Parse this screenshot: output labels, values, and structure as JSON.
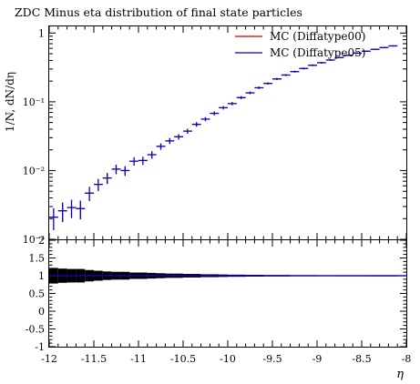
{
  "chart_data": [
    {
      "type": "scatter",
      "title": "ZDC Minus eta distribution of final state particles",
      "ylabel": "1/N, dN/dη",
      "yscale": "log",
      "xlim": [
        -12,
        -8
      ],
      "ylim": [
        0.001,
        1.25
      ],
      "yticks": [
        {
          "v": 1,
          "label": "1"
        },
        {
          "v": 0.1,
          "label": "10⁻¹"
        },
        {
          "v": 0.01,
          "label": "10⁻²"
        },
        {
          "v": 0.001,
          "label": "10⁻³"
        }
      ],
      "legend_position": "top-right",
      "series": [
        {
          "name": "MC (Diffatype00)",
          "color": "#cc0000",
          "x": [
            -11.95,
            -11.85,
            -11.75,
            -11.65,
            -11.55,
            -11.45,
            -11.35,
            -11.25,
            -11.15,
            -11.05,
            -10.95,
            -10.85,
            -10.75,
            -10.65,
            -10.55,
            -10.45,
            -10.35,
            -10.25,
            -10.15,
            -10.05,
            -9.95,
            -9.85,
            -9.75,
            -9.65,
            -9.55,
            -9.45,
            -9.35,
            -9.25,
            -9.15,
            -9.05,
            -8.95,
            -8.85,
            -8.75,
            -8.65,
            -8.55,
            -8.45,
            -8.35,
            -8.25,
            -8.15
          ],
          "y": [
            0.0021,
            0.0026,
            0.0029,
            0.0028,
            0.0047,
            0.0063,
            0.0078,
            0.0105,
            0.01,
            0.0137,
            0.014,
            0.017,
            0.0225,
            0.027,
            0.031,
            0.0375,
            0.047,
            0.056,
            0.068,
            0.082,
            0.094,
            0.115,
            0.135,
            0.16,
            0.185,
            0.215,
            0.245,
            0.275,
            0.305,
            0.34,
            0.37,
            0.405,
            0.44,
            0.475,
            0.51,
            0.545,
            0.58,
            0.615,
            0.65
          ]
        },
        {
          "name": "MC (Diffatype05)",
          "color": "#0000cc",
          "x": [
            -11.95,
            -11.85,
            -11.75,
            -11.65,
            -11.55,
            -11.45,
            -11.35,
            -11.25,
            -11.15,
            -11.05,
            -10.95,
            -10.85,
            -10.75,
            -10.65,
            -10.55,
            -10.45,
            -10.35,
            -10.25,
            -10.15,
            -10.05,
            -9.95,
            -9.85,
            -9.75,
            -9.65,
            -9.55,
            -9.45,
            -9.35,
            -9.25,
            -9.15,
            -9.05,
            -8.95,
            -8.85,
            -8.75,
            -8.65,
            -8.55,
            -8.45,
            -8.35,
            -8.25,
            -8.15
          ],
          "y": [
            0.0021,
            0.0026,
            0.0029,
            0.0028,
            0.0047,
            0.0063,
            0.0078,
            0.0105,
            0.01,
            0.0137,
            0.014,
            0.017,
            0.0225,
            0.027,
            0.031,
            0.0375,
            0.047,
            0.056,
            0.068,
            0.082,
            0.094,
            0.115,
            0.135,
            0.16,
            0.185,
            0.215,
            0.245,
            0.275,
            0.305,
            0.34,
            0.37,
            0.405,
            0.44,
            0.475,
            0.51,
            0.545,
            0.58,
            0.615,
            0.65
          ]
        }
      ]
    },
    {
      "type": "line",
      "xlabel": "η",
      "xlim": [
        -12,
        -8
      ],
      "ylim": [
        -1,
        2
      ],
      "xticks": [
        {
          "v": -12,
          "label": "-12"
        },
        {
          "v": -11.5,
          "label": "-11.5"
        },
        {
          "v": -11,
          "label": "-11"
        },
        {
          "v": -10.5,
          "label": "-10.5"
        },
        {
          "v": -10,
          "label": "-10"
        },
        {
          "v": -9.5,
          "label": "-9.5"
        },
        {
          "v": -9,
          "label": "-9"
        },
        {
          "v": -8.5,
          "label": "-8.5"
        },
        {
          "v": -8,
          "label": "-8"
        }
      ],
      "yticks": [
        {
          "v": 2,
          "label": "2"
        },
        {
          "v": 1.5,
          "label": "1.5"
        },
        {
          "v": 1,
          "label": "1"
        },
        {
          "v": 0.5,
          "label": "0.5"
        },
        {
          "v": 0,
          "label": "0"
        },
        {
          "v": -0.5,
          "label": "-0.5"
        },
        {
          "v": -1,
          "label": "-1"
        }
      ],
      "ratio_value": 1,
      "band_x": [
        -11.95,
        -11.85,
        -11.75,
        -11.65,
        -11.55,
        -11.45,
        -11.35,
        -11.25,
        -11.15,
        -11.05,
        -10.95,
        -10.85,
        -10.75,
        -10.65,
        -10.55,
        -10.45,
        -10.35,
        -10.25,
        -10.15,
        -10.05,
        -9.95,
        -9.85,
        -9.75,
        -9.65,
        -9.55,
        -9.45,
        -9.35,
        -9.25,
        -9.15,
        -9.05,
        -8.95,
        -8.85,
        -8.75,
        -8.65,
        -8.55,
        -8.45,
        -8.35,
        -8.25,
        -8.15
      ],
      "band_halfwidth": [
        0.22,
        0.2,
        0.19,
        0.19,
        0.16,
        0.14,
        0.12,
        0.11,
        0.11,
        0.09,
        0.09,
        0.08,
        0.07,
        0.06,
        0.06,
        0.05,
        0.05,
        0.04,
        0.04,
        0.035,
        0.03,
        0.03,
        0.025,
        0.025,
        0.02,
        0.02,
        0.02,
        0.015,
        0.015,
        0.015,
        0.012,
        0.012,
        0.01,
        0.01,
        0.01,
        0.01,
        0.008,
        0.008,
        0.008
      ],
      "band_color": "#000000",
      "series": [
        {
          "color": "#cc0000"
        },
        {
          "color": "#0000cc"
        }
      ]
    }
  ]
}
